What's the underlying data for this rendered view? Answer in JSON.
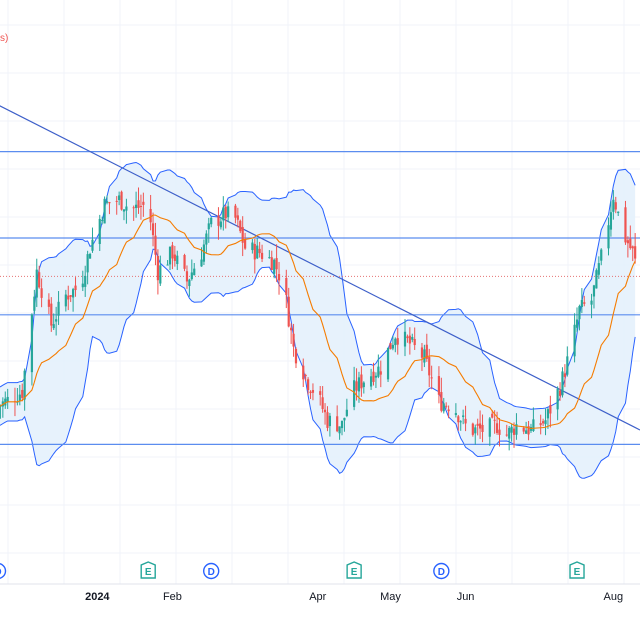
{
  "chart_data": {
    "type": "candlestick",
    "title_fragment": "s)",
    "x_axis": {
      "labels": [
        {
          "text": "2024",
          "bold": true,
          "day": 41
        },
        {
          "text": "Feb",
          "bold": false,
          "day": 72
        },
        {
          "text": "Apr",
          "bold": false,
          "day": 132
        },
        {
          "text": "May",
          "bold": false,
          "day": 162
        },
        {
          "text": "Jun",
          "bold": false,
          "day": 193
        },
        {
          "text": "Aug",
          "bold": false,
          "day": 254
        }
      ]
    },
    "event_markers": [
      {
        "kind": "dividend",
        "letter": "D",
        "day": 0
      },
      {
        "kind": "earnings",
        "letter": "E",
        "day": 62
      },
      {
        "kind": "dividend",
        "letter": "D",
        "day": 88
      },
      {
        "kind": "earnings",
        "letter": "E",
        "day": 147
      },
      {
        "kind": "dividend",
        "letter": "D",
        "day": 183
      },
      {
        "kind": "earnings",
        "letter": "E",
        "day": 239
      }
    ],
    "horizontal_levels": [
      0.22,
      0.49,
      0.65,
      0.83
    ],
    "dotted_level": 0.57,
    "trendline": {
      "start": [
        -5,
        0.94
      ],
      "end": [
        265,
        0.25
      ]
    },
    "price_range_relative": [
      -1.0,
      1.0
    ],
    "candles_source": "approximate relative price path (normalized 0-1 scale, no printed values)",
    "colors": {
      "up": "#26a69a",
      "down": "#ef5350",
      "band_line": "#2962ff",
      "band_fill": "#e3f0fb",
      "basis": "#f57c00",
      "level_line": "#5b8def",
      "trendline": "#3d5fc9",
      "dotted": "#e57373",
      "grid": "#f0f3fa",
      "axis_text": "#131722",
      "dividend_marker": "#2962ff",
      "earnings_marker": "#26a69a"
    }
  }
}
